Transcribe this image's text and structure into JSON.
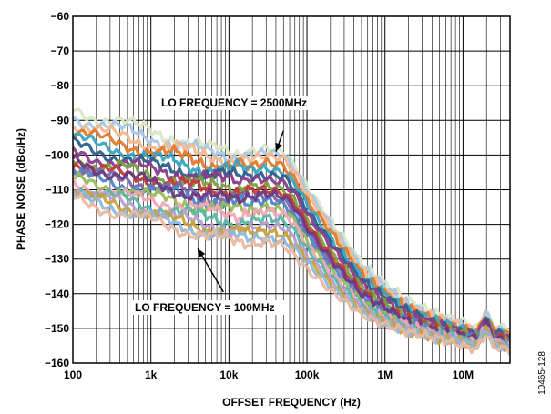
{
  "chart_data": {
    "type": "line",
    "title": "",
    "xlabel": "OFFSET FREQUENCY (Hz)",
    "ylabel": "PHASE NOISE (dBc/Hz)",
    "x_scale": "log",
    "xlim": [
      100,
      40000000
    ],
    "ylim": [
      -160,
      -60
    ],
    "grid": true,
    "x_ticks": [
      100,
      1000,
      10000,
      100000,
      1000000,
      10000000
    ],
    "x_tick_labels": [
      "100",
      "1k",
      "10k",
      "100k",
      "1M",
      "10M"
    ],
    "y_ticks": [
      -160,
      -150,
      -140,
      -130,
      -120,
      -110,
      -100,
      -90,
      -80,
      -70,
      -60
    ],
    "y_tick_labels": [
      "−160",
      "−150",
      "−140",
      "−130",
      "−120",
      "−110",
      "−100",
      "−90",
      "−80",
      "−70",
      "−60"
    ],
    "annotations": [
      {
        "text": "LO FREQUENCY = 2500MHz",
        "x": 40000,
        "y": -99
      },
      {
        "text": "LO FREQUENCY = 100MHz",
        "x": 4000,
        "y": -127
      }
    ],
    "figure_id": "10465-128",
    "x": [
      100,
      200,
      500,
      1000,
      2000,
      5000,
      10000,
      20000,
      30000,
      50000,
      70000,
      100000,
      200000,
      500000,
      1000000,
      2000000,
      5000000,
      10000000,
      15000000,
      20000000,
      25000000,
      30000000,
      40000000
    ],
    "series": [
      {
        "color": "#d9e8c6",
        "values": [
          -87,
          -89,
          -91,
          -93,
          -95,
          -98,
          -99,
          -99,
          -98,
          -99,
          -103,
          -109,
          -119,
          -131,
          -137,
          -142,
          -146,
          -148,
          -150,
          -145,
          -150,
          -149,
          -151
        ]
      },
      {
        "color": "#a9c7e6",
        "values": [
          -89,
          -91,
          -93,
          -95,
          -97,
          -99,
          -100,
          -100,
          -99,
          -100,
          -104,
          -110,
          -120,
          -132,
          -138,
          -143,
          -147,
          -149,
          -151,
          -145,
          -151,
          -150,
          -152
        ]
      },
      {
        "color": "#f4b98f",
        "values": [
          -91,
          -93,
          -95,
          -97,
          -98,
          -100,
          -101,
          -101,
          -100,
          -101,
          -105,
          -111,
          -121,
          -133,
          -139,
          -144,
          -147,
          -149,
          -151,
          -146,
          -151,
          -150,
          -152
        ]
      },
      {
        "color": "#e37a2a",
        "values": [
          -93,
          -95,
          -97,
          -99,
          -100,
          -102,
          -103,
          -103,
          -102,
          -103,
          -107,
          -113,
          -122,
          -134,
          -140,
          -144,
          -148,
          -150,
          -151,
          -146,
          -151,
          -151,
          -152
        ]
      },
      {
        "color": "#3aa5c0",
        "values": [
          -95,
          -97,
          -99,
          -101,
          -102,
          -104,
          -104,
          -104,
          -104,
          -105,
          -108,
          -114,
          -124,
          -135,
          -140,
          -145,
          -148,
          -150,
          -152,
          -147,
          -152,
          -151,
          -153
        ]
      },
      {
        "color": "#2c5e8c",
        "values": [
          -97,
          -99,
          -101,
          -103,
          -104,
          -106,
          -106,
          -106,
          -106,
          -106,
          -110,
          -116,
          -125,
          -136,
          -141,
          -145,
          -149,
          -151,
          -152,
          -147,
          -152,
          -151,
          -153
        ]
      },
      {
        "color": "#8a3d8c",
        "values": [
          -99,
          -101,
          -103,
          -104,
          -105,
          -107,
          -107,
          -107,
          -107,
          -108,
          -111,
          -117,
          -126,
          -137,
          -142,
          -146,
          -149,
          -151,
          -152,
          -147,
          -152,
          -152,
          -153
        ]
      },
      {
        "color": "#7f9f3f",
        "values": [
          -101,
          -103,
          -104,
          -106,
          -107,
          -109,
          -109,
          -109,
          -109,
          -110,
          -113,
          -119,
          -128,
          -138,
          -143,
          -147,
          -150,
          -151,
          -153,
          -148,
          -153,
          -152,
          -154
        ]
      },
      {
        "color": "#c23b3b",
        "values": [
          -102,
          -104,
          -106,
          -107,
          -108,
          -110,
          -110,
          -110,
          -110,
          -111,
          -114,
          -120,
          -129,
          -139,
          -144,
          -147,
          -150,
          -152,
          -153,
          -148,
          -153,
          -152,
          -154
        ]
      },
      {
        "color": "#7b68b3",
        "values": [
          -104,
          -106,
          -107,
          -109,
          -110,
          -112,
          -112,
          -112,
          -112,
          -113,
          -116,
          -122,
          -131,
          -140,
          -145,
          -148,
          -151,
          -152,
          -153,
          -148,
          -153,
          -153,
          -154
        ]
      },
      {
        "color": "#4f86c6",
        "values": [
          -105,
          -107,
          -109,
          -110,
          -111,
          -113,
          -114,
          -114,
          -113,
          -114,
          -118,
          -123,
          -132,
          -141,
          -145,
          -148,
          -151,
          -152,
          -154,
          -149,
          -154,
          -153,
          -155
        ]
      },
      {
        "color": "#9bbb59",
        "values": [
          -107,
          -109,
          -110,
          -112,
          -113,
          -115,
          -116,
          -116,
          -115,
          -116,
          -119,
          -125,
          -133,
          -142,
          -146,
          -149,
          -151,
          -153,
          -154,
          -149,
          -154,
          -153,
          -155
        ]
      },
      {
        "color": "#6b3a7e",
        "values": [
          -102,
          -104,
          -106,
          -108,
          -110,
          -112,
          -113,
          -112,
          -111,
          -112,
          -115,
          -121,
          -130,
          -140,
          -144,
          -148,
          -151,
          -152,
          -153,
          -148,
          -153,
          -153,
          -154
        ]
      },
      {
        "color": "#f2a7b5",
        "values": [
          -108,
          -110,
          -112,
          -113,
          -114,
          -116,
          -117,
          -117,
          -116,
          -117,
          -120,
          -126,
          -134,
          -143,
          -147,
          -149,
          -152,
          -153,
          -154,
          -149,
          -154,
          -154,
          -155
        ]
      },
      {
        "color": "#5bb5a6",
        "values": [
          -109,
          -111,
          -113,
          -115,
          -116,
          -118,
          -119,
          -119,
          -118,
          -119,
          -122,
          -127,
          -135,
          -143,
          -147,
          -150,
          -152,
          -153,
          -155,
          -150,
          -155,
          -154,
          -156
        ]
      },
      {
        "color": "#b5a0d0",
        "values": [
          -110,
          -112,
          -114,
          -116,
          -118,
          -120,
          -121,
          -121,
          -120,
          -121,
          -124,
          -129,
          -136,
          -144,
          -148,
          -150,
          -152,
          -154,
          -155,
          -150,
          -155,
          -154,
          -156
        ]
      },
      {
        "color": "#c9a03a",
        "values": [
          -111,
          -113,
          -115,
          -117,
          -119,
          -121,
          -122,
          -122,
          -122,
          -123,
          -126,
          -130,
          -137,
          -145,
          -148,
          -151,
          -153,
          -154,
          -155,
          -150,
          -155,
          -155,
          -156
        ]
      },
      {
        "color": "#8fb8d8",
        "values": [
          -112,
          -114,
          -116,
          -118,
          -120,
          -122,
          -124,
          -124,
          -124,
          -125,
          -127,
          -131,
          -138,
          -145,
          -149,
          -151,
          -153,
          -154,
          -155,
          -150,
          -155,
          -155,
          -156
        ]
      },
      {
        "color": "#e9b7a0",
        "values": [
          -113,
          -115,
          -117,
          -119,
          -121,
          -123,
          -125,
          -126,
          -125,
          -126,
          -129,
          -133,
          -139,
          -146,
          -149,
          -151,
          -153,
          -155,
          -156,
          -151,
          -156,
          -155,
          -157
        ]
      }
    ]
  }
}
